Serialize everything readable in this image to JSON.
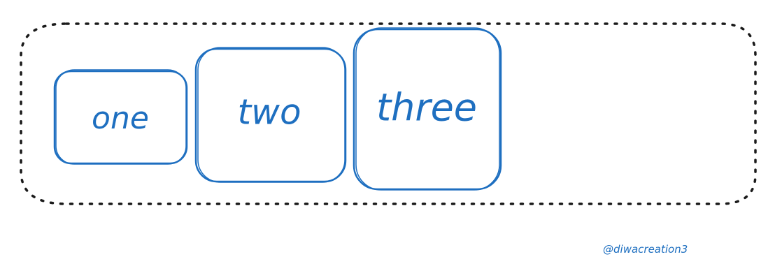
{
  "colors": {
    "ink": "#1e6fc0",
    "container_border": "#1a1a1a",
    "background": "#ffffff"
  },
  "container": {
    "border_style": "dashed"
  },
  "boxes": [
    {
      "label": "one"
    },
    {
      "label": "two"
    },
    {
      "label": "three"
    }
  ],
  "watermark": "@diwacreation3"
}
